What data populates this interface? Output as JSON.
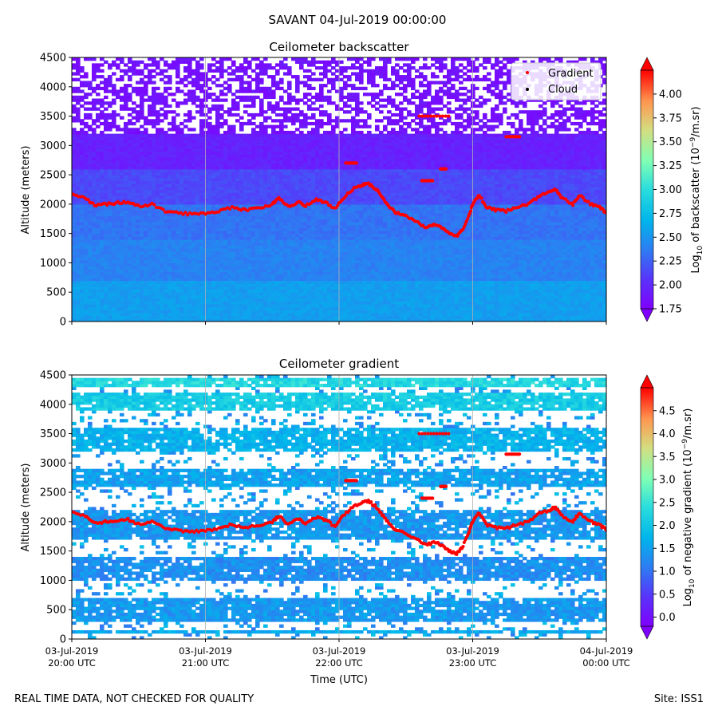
{
  "suptitle": "SAVANT 04-Jul-2019 00:00:00",
  "footer_left": "REAL TIME DATA, NOT CHECKED FOR QUALITY",
  "footer_right": "Site: ISS1",
  "chart_data": [
    {
      "type": "heatmap",
      "title": "Ceilometer backscatter",
      "ylabel": "Altitude (meters)",
      "xlabel": "",
      "ylim": [
        0,
        4500
      ],
      "yticks": [
        0,
        500,
        1000,
        1500,
        2000,
        2500,
        3000,
        3500,
        4000,
        4500
      ],
      "xlim_hours": [
        20,
        24
      ],
      "xtick_hours": [
        20,
        21,
        22,
        23,
        24
      ],
      "colorbar": {
        "label_prefix": "Log",
        "label_sub": "10",
        "label_mid": " of backscatter (10",
        "label_sup": "−9",
        "label_end": "/m.sr)",
        "min": 1.75,
        "max": 4.25,
        "ticks": [
          1.75,
          2.0,
          2.25,
          2.5,
          2.75,
          3.0,
          3.25,
          3.5,
          3.75,
          4.0
        ],
        "tick_labels": [
          "1.75",
          "2.00",
          "2.25",
          "2.50",
          "2.75",
          "3.00",
          "3.25",
          "3.50",
          "3.75",
          "4.00"
        ]
      },
      "legend": {
        "location": "top-right",
        "entries": [
          {
            "label": "Gradient",
            "color": "#ff0000"
          },
          {
            "label": "Cloud",
            "color": "#000000"
          }
        ]
      },
      "background_layers": [
        {
          "alt": [
            0,
            700
          ],
          "value": 2.55
        },
        {
          "alt": [
            700,
            1400
          ],
          "value": 2.4
        },
        {
          "alt": [
            1400,
            2000
          ],
          "value": 2.33
        },
        {
          "alt": [
            2000,
            2600
          ],
          "value": 2.15
        },
        {
          "alt": [
            2600,
            3200
          ],
          "value": 1.95
        },
        {
          "alt": [
            3200,
            4500
          ],
          "value": 1.85
        }
      ],
      "sparse_above_m": 3200
    },
    {
      "type": "heatmap",
      "title": "Ceilometer gradient",
      "ylabel": "Altitude (meters)",
      "xlabel": "Time (UTC)",
      "ylim": [
        0,
        4500
      ],
      "yticks": [
        0,
        500,
        1000,
        1500,
        2000,
        2500,
        3000,
        3500,
        4000,
        4500
      ],
      "xlim_hours": [
        20,
        24
      ],
      "xtick_hours": [
        20,
        21,
        22,
        23,
        24
      ],
      "xtick_labels": [
        {
          "date": "03-Jul-2019",
          "time": "20:00 UTC"
        },
        {
          "date": "03-Jul-2019",
          "time": "21:00 UTC"
        },
        {
          "date": "03-Jul-2019",
          "time": "22:00 UTC"
        },
        {
          "date": "03-Jul-2019",
          "time": "23:00 UTC"
        },
        {
          "date": "04-Jul-2019",
          "time": "00:00 UTC"
        }
      ],
      "colorbar": {
        "label_prefix": "Log",
        "label_sub": "10",
        "label_mid": " of negative gradient (10",
        "label_sup": "−9",
        "label_end": "/m.sr)",
        "min": -0.2,
        "max": 5.0,
        "ticks": [
          0.0,
          0.5,
          1.0,
          1.5,
          2.0,
          2.5,
          3.0,
          3.5,
          4.0,
          4.5
        ],
        "tick_labels": [
          "0.0",
          "0.5",
          "1.0",
          "1.5",
          "2.0",
          "2.5",
          "3.0",
          "3.5",
          "4.0",
          "4.5"
        ]
      },
      "bands": [
        {
          "alt": [
            100,
            170
          ],
          "value": 1.6
        },
        {
          "alt": [
            300,
            700
          ],
          "value": 1.4
        },
        {
          "alt": [
            1000,
            1400
          ],
          "value": 1.3
        },
        {
          "alt": [
            1700,
            2200
          ],
          "value": 1.4
        },
        {
          "alt": [
            2600,
            2900
          ],
          "value": 1.5
        },
        {
          "alt": [
            3200,
            3600
          ],
          "value": 1.7
        },
        {
          "alt": [
            3900,
            4200
          ],
          "value": 2.1
        },
        {
          "alt": [
            4300,
            4450
          ],
          "value": 2.3
        }
      ]
    }
  ],
  "gradient_points": [
    [
      20.0,
      2180
    ],
    [
      20.1,
      2100
    ],
    [
      20.17,
      1980
    ],
    [
      20.25,
      2000
    ],
    [
      20.33,
      2020
    ],
    [
      20.42,
      2040
    ],
    [
      20.5,
      1960
    ],
    [
      20.6,
      2000
    ],
    [
      20.7,
      1880
    ],
    [
      20.8,
      1850
    ],
    [
      20.9,
      1830
    ],
    [
      21.0,
      1850
    ],
    [
      21.1,
      1880
    ],
    [
      21.2,
      1950
    ],
    [
      21.3,
      1900
    ],
    [
      21.4,
      1930
    ],
    [
      21.5,
      2000
    ],
    [
      21.55,
      2100
    ],
    [
      21.62,
      1950
    ],
    [
      21.7,
      2050
    ],
    [
      21.75,
      1970
    ],
    [
      21.83,
      2080
    ],
    [
      21.9,
      2030
    ],
    [
      21.97,
      1920
    ],
    [
      22.03,
      2100
    ],
    [
      22.1,
      2250
    ],
    [
      22.17,
      2320
    ],
    [
      22.22,
      2350
    ],
    [
      22.28,
      2250
    ],
    [
      22.33,
      2100
    ],
    [
      22.38,
      1950
    ],
    [
      22.43,
      1850
    ],
    [
      22.5,
      1800
    ],
    [
      22.58,
      1700
    ],
    [
      22.65,
      1600
    ],
    [
      22.72,
      1650
    ],
    [
      22.78,
      1580
    ],
    [
      22.83,
      1500
    ],
    [
      22.88,
      1450
    ],
    [
      22.92,
      1550
    ],
    [
      22.97,
      1800
    ],
    [
      23.0,
      2000
    ],
    [
      23.05,
      2150
    ],
    [
      23.1,
      1950
    ],
    [
      23.17,
      1900
    ],
    [
      23.25,
      1880
    ],
    [
      23.33,
      1950
    ],
    [
      23.42,
      2000
    ],
    [
      23.5,
      2150
    ],
    [
      23.58,
      2200
    ],
    [
      23.62,
      2250
    ],
    [
      23.67,
      2100
    ],
    [
      23.75,
      2000
    ],
    [
      23.8,
      2150
    ],
    [
      23.88,
      2000
    ],
    [
      23.95,
      1950
    ],
    [
      24.0,
      1850
    ]
  ],
  "gradient_segments": [
    {
      "x": [
        22.05,
        22.13
      ],
      "alt": 2700
    },
    {
      "x": [
        22.6,
        22.82
      ],
      "alt": 3500
    },
    {
      "x": [
        22.62,
        22.7
      ],
      "alt": 2400
    },
    {
      "x": [
        22.76,
        22.8
      ],
      "alt": 2600
    },
    {
      "x": [
        23.25,
        23.35
      ],
      "alt": 3150
    }
  ]
}
